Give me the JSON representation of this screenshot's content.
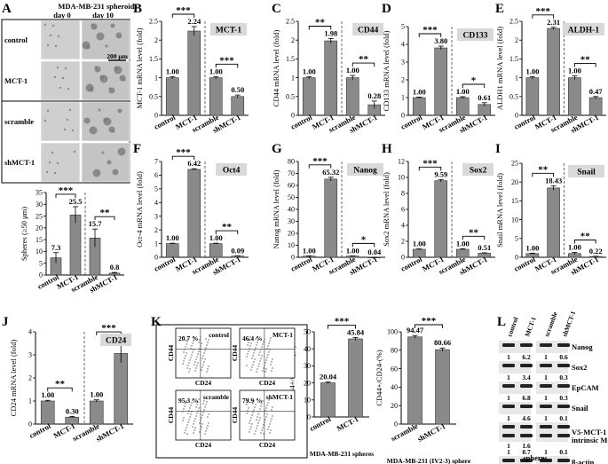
{
  "panel_letters": [
    "A",
    "B",
    "C",
    "D",
    "E",
    "F",
    "G",
    "H",
    "I",
    "J",
    "K",
    "L"
  ],
  "chart_data": [
    {
      "type": "bar",
      "panel": "A",
      "title": "",
      "ylabel": "Spheres (≥50 μm)",
      "ylim": [
        0,
        35
      ],
      "yticks": [
        0,
        5,
        10,
        15,
        20,
        25,
        30,
        35
      ],
      "categories": [
        "control",
        "MCT-1",
        "scramble",
        "shMCT-1"
      ],
      "values": [
        7.3,
        25.5,
        15.7,
        0.8
      ],
      "errors": [
        2.2,
        3.5,
        3.8,
        0.3
      ],
      "value_labels": [
        "7.3",
        "25.5",
        "15.7",
        "0.8"
      ],
      "sig": [
        {
          "a": 0,
          "b": 1,
          "label": "***"
        },
        {
          "a": 2,
          "b": 3,
          "label": "**"
        }
      ],
      "tag": ""
    },
    {
      "type": "bar",
      "panel": "B",
      "title": "",
      "ylabel": "MCT-1 mRNA level (fold)",
      "ylim": [
        0,
        2.5
      ],
      "yticks": [
        0,
        0.5,
        1,
        1.5,
        2,
        2.5
      ],
      "categories": [
        "control",
        "MCT-1",
        "scramble",
        "shMCT-1"
      ],
      "values": [
        1.0,
        2.24,
        1.0,
        0.5
      ],
      "errors": [
        0.03,
        0.12,
        0.03,
        0.04
      ],
      "value_labels": [
        "1.00",
        "2.24",
        "1.00",
        "0.50"
      ],
      "sig": [
        {
          "a": 0,
          "b": 1,
          "label": "***"
        },
        {
          "a": 2,
          "b": 3,
          "label": "***"
        }
      ],
      "tag": "MCT-1"
    },
    {
      "type": "bar",
      "panel": "C",
      "title": "",
      "ylabel": "CD44 mRNA level (fold)",
      "ylim": [
        0,
        2.5
      ],
      "yticks": [
        0,
        0.5,
        1,
        1.5,
        2,
        2.5
      ],
      "categories": [
        "control",
        "MCT-1",
        "scramble",
        "shMCT-1"
      ],
      "values": [
        1.0,
        1.98,
        1.0,
        0.28
      ],
      "errors": [
        0.03,
        0.06,
        0.06,
        0.1
      ],
      "value_labels": [
        "1.00",
        "1.98",
        "1.00",
        "0.28"
      ],
      "sig": [
        {
          "a": 0,
          "b": 1,
          "label": "**"
        },
        {
          "a": 2,
          "b": 3,
          "label": "**"
        }
      ],
      "tag": "CD44"
    },
    {
      "type": "bar",
      "panel": "D",
      "title": "",
      "ylabel": "CD133 mRNA level (fold)",
      "ylim": [
        0,
        5
      ],
      "yticks": [
        0,
        1,
        2,
        3,
        4,
        5
      ],
      "categories": [
        "control",
        "MCT-1",
        "scramble",
        "shMCT-1"
      ],
      "values": [
        1.0,
        3.8,
        1.0,
        0.61
      ],
      "errors": [
        0.03,
        0.1,
        0.05,
        0.1
      ],
      "value_labels": [
        "1.00",
        "3.80",
        "1.00",
        "0.61"
      ],
      "sig": [
        {
          "a": 0,
          "b": 1,
          "label": "***"
        },
        {
          "a": 2,
          "b": 3,
          "label": "*"
        }
      ],
      "tag": "CD133"
    },
    {
      "type": "bar",
      "panel": "E",
      "title": "",
      "ylabel": "ALDH1 mRNA level (fold)",
      "ylim": [
        0,
        2.5
      ],
      "yticks": [
        0,
        0.5,
        1,
        1.5,
        2,
        2.5
      ],
      "categories": [
        "control",
        "MCT-1",
        "scramble",
        "shMCT-1"
      ],
      "values": [
        1.0,
        2.31,
        1.0,
        0.47
      ],
      "errors": [
        0.03,
        0.03,
        0.05,
        0.03
      ],
      "value_labels": [
        "1.00",
        "2.31",
        "1.00",
        "0.47"
      ],
      "sig": [
        {
          "a": 0,
          "b": 1,
          "label": "***"
        },
        {
          "a": 2,
          "b": 3,
          "label": "**"
        }
      ],
      "tag": "ALDH-1"
    },
    {
      "type": "bar",
      "panel": "F",
      "title": "",
      "ylabel": "Oct-4 mRNA level (fold)",
      "ylim": [
        0,
        7
      ],
      "yticks": [
        0,
        1,
        2,
        3,
        4,
        5,
        6,
        7
      ],
      "categories": [
        "control",
        "MCT-1",
        "scramble",
        "shMCT-1"
      ],
      "values": [
        1.0,
        6.42,
        1.0,
        0.09
      ],
      "errors": [
        0.03,
        0.05,
        0.03,
        0.02
      ],
      "value_labels": [
        "1.00",
        "6.42",
        "1.00",
        "0.09"
      ],
      "sig": [
        {
          "a": 0,
          "b": 1,
          "label": "***"
        },
        {
          "a": 2,
          "b": 3,
          "label": "**"
        }
      ],
      "tag": "Oct4"
    },
    {
      "type": "bar",
      "panel": "G",
      "title": "",
      "ylabel": "Nanog mRNA level (fold)",
      "ylim": [
        0,
        80
      ],
      "yticks": [
        0,
        10,
        20,
        30,
        40,
        50,
        60,
        70,
        80
      ],
      "categories": [
        "control",
        "MCT-1",
        "scramble",
        "shMCT-1"
      ],
      "values": [
        1.0,
        65.32,
        1.0,
        0.04
      ],
      "errors": [
        0.2,
        1.5,
        0.2,
        0.02
      ],
      "value_labels": [
        "1.00",
        "65.32",
        "1.00",
        "0.04"
      ],
      "sig": [
        {
          "a": 0,
          "b": 1,
          "label": "***"
        },
        {
          "a": 2,
          "b": 3,
          "label": "*"
        }
      ],
      "tag": "Nanog"
    },
    {
      "type": "bar",
      "panel": "H",
      "title": "",
      "ylabel": "Sox2 mRNA level (fold)",
      "ylim": [
        0,
        12
      ],
      "yticks": [
        0,
        2,
        4,
        6,
        8,
        10,
        12
      ],
      "categories": [
        "control",
        "MCT-1",
        "scramble",
        "shMCT-1"
      ],
      "values": [
        1.0,
        9.59,
        1.0,
        0.51
      ],
      "errors": [
        0.05,
        0.15,
        0.08,
        0.05
      ],
      "value_labels": [
        "1.00",
        "9.59",
        "1.00",
        "0.51"
      ],
      "sig": [
        {
          "a": 0,
          "b": 1,
          "label": "***"
        },
        {
          "a": 2,
          "b": 3,
          "label": "**"
        }
      ],
      "tag": "Sox2"
    },
    {
      "type": "bar",
      "panel": "I",
      "title": "",
      "ylabel": "Snail mRNA level (fold)",
      "ylim": [
        0,
        25
      ],
      "yticks": [
        0,
        5,
        10,
        15,
        20,
        25
      ],
      "categories": [
        "control",
        "MCT-1",
        "scramble",
        "shMCT-1"
      ],
      "values": [
        1.0,
        18.43,
        1.0,
        0.22
      ],
      "errors": [
        0.1,
        0.6,
        0.3,
        0.05
      ],
      "value_labels": [
        "1.00",
        "18.43",
        "1.00",
        "0.22"
      ],
      "sig": [
        {
          "a": 0,
          "b": 1,
          "label": "**"
        },
        {
          "a": 2,
          "b": 3,
          "label": "**"
        }
      ],
      "tag": "Snail"
    },
    {
      "type": "bar",
      "panel": "J",
      "title": "",
      "ylabel": "CD24 mRNA level (fold)",
      "ylim": [
        0,
        4
      ],
      "yticks": [
        0,
        1,
        2,
        3,
        4
      ],
      "categories": [
        "control",
        "MCT-1",
        "scramble",
        "shMCT-1"
      ],
      "values": [
        1.0,
        0.3,
        1.0,
        3.06
      ],
      "errors": [
        0.03,
        0.03,
        0.05,
        0.4
      ],
      "value_labels": [
        "1.00",
        "0.30",
        "1.00",
        "3.06"
      ],
      "sig": [
        {
          "a": 0,
          "b": 1,
          "label": "**"
        },
        {
          "a": 2,
          "b": 3,
          "label": "***"
        }
      ],
      "tag": "CD24"
    },
    {
      "type": "bar",
      "panel": "K1",
      "title": "",
      "ylabel": "CD44+/CD24- (%)",
      "ylim": [
        0,
        50
      ],
      "yticks": [
        0,
        10,
        20,
        30,
        40,
        50
      ],
      "categories": [
        "control",
        "MCT-1"
      ],
      "values": [
        20.04,
        45.84
      ],
      "errors": [
        0.5,
        0.8
      ],
      "value_labels": [
        "20.04",
        "45.84"
      ],
      "sig": [
        {
          "a": 0,
          "b": 1,
          "label": "***"
        }
      ],
      "tag": "",
      "xnote": "MDA-MB-231 spheres"
    },
    {
      "type": "bar",
      "panel": "K2",
      "title": "",
      "ylabel": "CD44+/CD24-(%)",
      "ylim": [
        0,
        100
      ],
      "yticks": [
        0,
        20,
        40,
        60,
        80,
        100
      ],
      "categories": [
        "scramble",
        "shMCT-1"
      ],
      "values": [
        94.47,
        80.66
      ],
      "errors": [
        1.5,
        1.8
      ],
      "value_labels": [
        "94.47",
        "80.66"
      ],
      "sig": [
        {
          "a": 0,
          "b": 1,
          "label": "***"
        }
      ],
      "tag": "",
      "xnote": "MDA-MB-231 (IV2-3) sphere"
    }
  ],
  "panelA_images": {
    "header": "MDA-MB-231 spheroids",
    "col_labels": [
      "day 0",
      "day 10"
    ],
    "row_labels": [
      "control",
      "MCT-1",
      "scramble",
      "shMCT-1"
    ],
    "scale_bar": "200 μm"
  },
  "panelK_flow": {
    "plots": [
      {
        "pct": "20.7 %",
        "name": "control"
      },
      {
        "pct": "46.4 %",
        "name": "MCT-1"
      },
      {
        "pct": "95.3 %",
        "name": "scramble"
      },
      {
        "pct": "79.9 %",
        "name": "shMCT-1"
      }
    ],
    "xlabel": "CD24",
    "ylabel": "CD44",
    "ticks": [
      "10¹",
      "10²",
      "10³",
      "10⁴"
    ]
  },
  "panelL_western": {
    "col_labels": [
      "control",
      "MCT-1",
      "scramble",
      "shMCT-1"
    ],
    "rows": [
      {
        "name": "Nanog",
        "nums": [
          "1",
          "6.2",
          "1",
          "0.6"
        ]
      },
      {
        "name": "Sox2",
        "nums": [
          "1",
          "3.4",
          "1",
          "0.3"
        ]
      },
      {
        "name": "EpCAM",
        "nums": [
          "1",
          "6.8",
          "1",
          "0.3"
        ]
      },
      {
        "name": "Snail",
        "nums": [
          "1",
          "4.6",
          "1",
          "0.1"
        ]
      },
      {
        "name": "V5-MCT-1",
        "name2": "intrinsic MCT-1",
        "nums": [
          "1",
          "1.6",
          "",
          ""
        ],
        "nums2": [
          "1",
          "0.7",
          "1",
          "0.1"
        ]
      },
      {
        "name": "β-actin",
        "nums": []
      }
    ],
    "footer": "spheres"
  }
}
